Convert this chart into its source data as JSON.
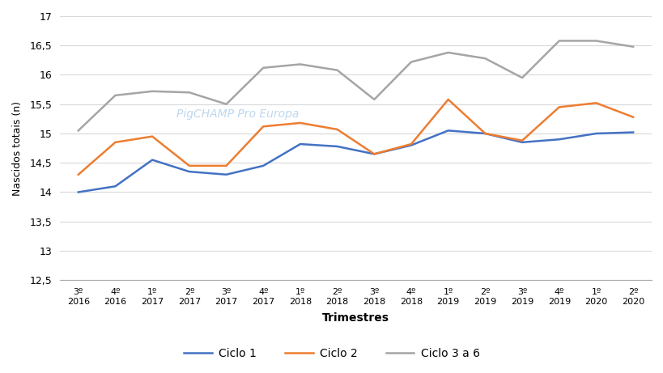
{
  "x_labels_line1": [
    "3º",
    "4º",
    "1º",
    "2º",
    "3º",
    "4º",
    "1º",
    "2º",
    "3º",
    "4º",
    "1º",
    "2º",
    "3º",
    "4º",
    "1º",
    "2º"
  ],
  "x_labels_line2": [
    "2016",
    "2016",
    "2017",
    "2017",
    "2017",
    "2017",
    "2018",
    "2018",
    "2018",
    "2018",
    "2019",
    "2019",
    "2019",
    "2019",
    "2020",
    "2020"
  ],
  "ciclo1": [
    14.0,
    14.1,
    14.55,
    14.35,
    14.3,
    14.45,
    14.82,
    14.78,
    14.65,
    14.8,
    15.05,
    15.0,
    14.85,
    14.9,
    15.0,
    15.02
  ],
  "ciclo2": [
    14.3,
    14.85,
    14.95,
    14.45,
    14.45,
    15.12,
    15.18,
    15.07,
    14.65,
    14.82,
    15.58,
    15.0,
    14.88,
    15.45,
    15.52,
    15.28
  ],
  "ciclo3a6": [
    15.05,
    15.65,
    15.72,
    15.7,
    15.5,
    16.12,
    16.18,
    16.08,
    15.58,
    16.22,
    16.38,
    16.28,
    15.95,
    16.58,
    16.58,
    16.48
  ],
  "ciclo1_color": "#4472C4",
  "ciclo2_color": "#ED7D31",
  "ciclo3a6_color": "#A5A5A5",
  "ylabel": "Nascidos totais (n)",
  "xlabel": "Trimestres",
  "ylim_min": 12.5,
  "ylim_max": 17.0,
  "ytick_values": [
    12.5,
    13.0,
    13.5,
    14.0,
    14.5,
    15.0,
    15.5,
    16.0,
    16.5,
    17.0
  ],
  "ytick_labels": [
    "12,5",
    "13",
    "13,5",
    "14",
    "14,5",
    "15",
    "15,5",
    "16",
    "16,5",
    "17"
  ],
  "legend_labels": [
    "Ciclo 1",
    "Ciclo 2",
    "Ciclo 3 a 6"
  ],
  "watermark": "PigCHAMP Pro Europa",
  "background_color": "#FFFFFF",
  "grid_color": "#D9D9D9"
}
